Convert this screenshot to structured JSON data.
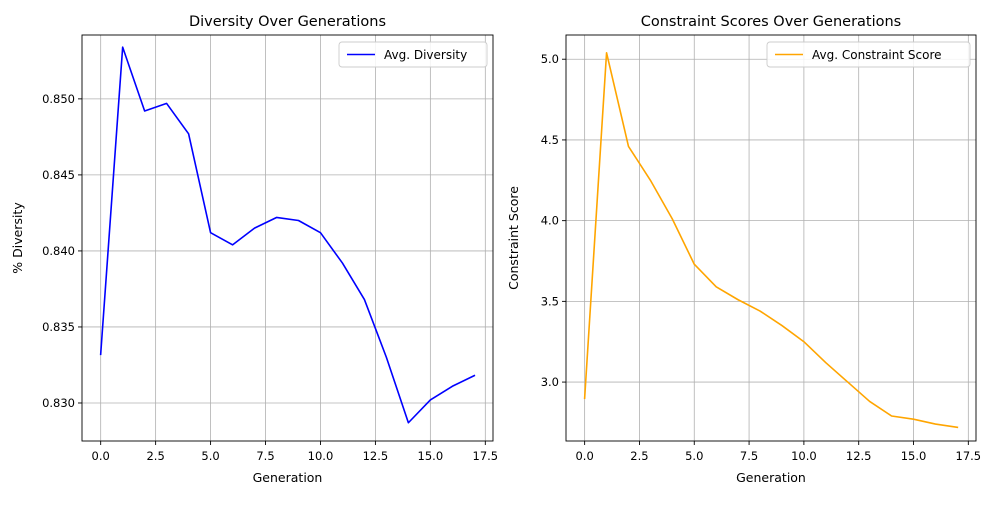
{
  "chart_data": [
    {
      "type": "line",
      "title": "Diversity Over Generations",
      "xlabel": "Generation",
      "ylabel": "% Diversity",
      "xlim": [
        -0.85,
        17.85
      ],
      "ylim": [
        0.8275,
        0.8542
      ],
      "xticks": [
        0,
        2.5,
        5,
        7.5,
        10,
        12.5,
        15,
        17.5
      ],
      "xtick_labels": [
        "0.0",
        "2.5",
        "5.0",
        "7.5",
        "10.0",
        "12.5",
        "15.0",
        "17.5"
      ],
      "yticks": [
        0.83,
        0.835,
        0.84,
        0.845,
        0.85
      ],
      "ytick_labels": [
        "0.830",
        "0.835",
        "0.840",
        "0.845",
        "0.850"
      ],
      "grid": true,
      "legend_position": "top-right",
      "series": [
        {
          "name": "Avg. Diversity",
          "color": "#0000ff",
          "x": [
            0,
            1,
            2,
            3,
            4,
            5,
            6,
            7,
            8,
            9,
            10,
            11,
            12,
            13,
            14,
            15,
            16,
            17
          ],
          "y": [
            0.8332,
            0.8534,
            0.8492,
            0.8497,
            0.8477,
            0.8412,
            0.8404,
            0.8415,
            0.8422,
            0.842,
            0.8412,
            0.8392,
            0.8368,
            0.833,
            0.8287,
            0.8302,
            0.8311,
            0.8318
          ]
        }
      ]
    },
    {
      "type": "line",
      "title": "Constraint Scores Over Generations",
      "xlabel": "Generation",
      "ylabel": "Constraint Score",
      "xlim": [
        -0.85,
        17.85
      ],
      "ylim": [
        2.635,
        5.15
      ],
      "xticks": [
        0,
        2.5,
        5,
        7.5,
        10,
        12.5,
        15,
        17.5
      ],
      "xtick_labels": [
        "0.0",
        "2.5",
        "5.0",
        "7.5",
        "10.0",
        "12.5",
        "15.0",
        "17.5"
      ],
      "yticks": [
        3.0,
        3.5,
        4.0,
        4.5,
        5.0
      ],
      "ytick_labels": [
        "3.0",
        "3.5",
        "4.0",
        "4.5",
        "5.0"
      ],
      "grid": true,
      "legend_position": "top-right",
      "series": [
        {
          "name": "Avg. Constraint Score",
          "color": "#ffa500",
          "x": [
            0,
            1,
            2,
            3,
            4,
            5,
            6,
            7,
            8,
            9,
            10,
            11,
            12,
            13,
            14,
            15,
            16,
            17
          ],
          "y": [
            2.9,
            5.04,
            4.46,
            4.25,
            4.01,
            3.73,
            3.59,
            3.51,
            3.44,
            3.35,
            3.25,
            3.12,
            3.0,
            2.88,
            2.79,
            2.77,
            2.74,
            2.72
          ]
        }
      ]
    }
  ]
}
